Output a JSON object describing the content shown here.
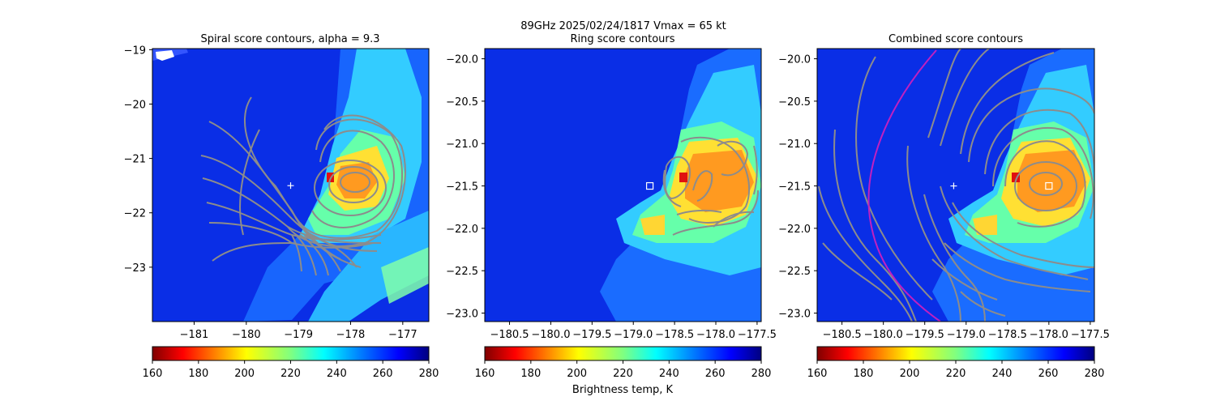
{
  "figure": {
    "suptitle_line1": "89GHz  2025/02/24/1817    Vmax = 65 kt",
    "colorbar_label": "Brightness temp, K"
  },
  "colormap": [
    "#800000",
    "#ff0000",
    "#ff8000",
    "#ffff00",
    "#80ff80",
    "#00ffff",
    "#0080ff",
    "#0000ff",
    "#000080"
  ],
  "chart_data": [
    {
      "type": "heatmap",
      "title": "Spiral score contours, alpha =  9.3",
      "xlim": [
        -181.8,
        -176.5
      ],
      "ylim": [
        -24.0,
        -18.98
      ],
      "xticks": [
        -181,
        -180,
        -179,
        -178,
        -177
      ],
      "xtick_labels": [
        "−181",
        "−180",
        "−179",
        "−178",
        "−177"
      ],
      "yticks": [
        -23,
        -22,
        -21,
        -20,
        -19
      ],
      "ytick_labels": [
        "−23",
        "−22",
        "−21",
        "−20",
        "−19"
      ],
      "colorbar": {
        "range": [
          160,
          280
        ],
        "ticks": [
          "160",
          "180",
          "200",
          "220",
          "240",
          "260",
          "280"
        ]
      },
      "markers": [
        {
          "type": "plus",
          "x": -179.15,
          "y": -21.5
        }
      ],
      "contour_center": [
        -178.0,
        -21.45
      ]
    },
    {
      "type": "heatmap",
      "title": "Ring score contours",
      "xlim": [
        -180.8,
        -177.45
      ],
      "ylim": [
        -23.1,
        -19.88
      ],
      "xticks": [
        -180.5,
        -180.0,
        -179.5,
        -179.0,
        -178.5,
        -178.0,
        -177.5
      ],
      "xtick_labels": [
        "−180.5",
        "−180.0",
        "−179.5",
        "−179.0",
        "−178.5",
        "−178.0",
        "−177.5"
      ],
      "yticks": [
        -23.0,
        -22.5,
        -22.0,
        -21.5,
        -21.0,
        -20.5,
        -20.0
      ],
      "ytick_labels": [
        "−23.0",
        "−22.5",
        "−22.0",
        "−21.5",
        "−21.0",
        "−20.5",
        "−20.0"
      ],
      "colorbar": {
        "range": [
          160,
          280
        ],
        "ticks": [
          "160",
          "180",
          "200",
          "220",
          "240",
          "260",
          "280"
        ]
      },
      "markers": [
        {
          "type": "square",
          "x": -178.8,
          "y": -21.5
        }
      ]
    },
    {
      "type": "heatmap",
      "title": "Combined score contours",
      "xlim": [
        -180.8,
        -177.45
      ],
      "ylim": [
        -23.1,
        -19.88
      ],
      "xticks": [
        -180.5,
        -180.0,
        -179.5,
        -179.0,
        -178.5,
        -178.0,
        -177.5
      ],
      "xtick_labels": [
        "−180.5",
        "−180.0",
        "−179.5",
        "−179.0",
        "−178.5",
        "−178.0",
        "−177.5"
      ],
      "yticks": [
        -23.0,
        -22.5,
        -22.0,
        -21.5,
        -21.0,
        -20.5,
        -20.0
      ],
      "ytick_labels": [
        "−23.0",
        "−22.5",
        "−22.0",
        "−21.5",
        "−21.0",
        "−20.5",
        "−20.0"
      ],
      "colorbar": {
        "range": [
          160,
          280
        ],
        "ticks": [
          "160",
          "180",
          "200",
          "220",
          "240",
          "260",
          "280"
        ]
      },
      "markers": [
        {
          "type": "plus",
          "x": -179.15,
          "y": -21.5
        },
        {
          "type": "square",
          "x": -178.0,
          "y": -21.5
        }
      ],
      "contour_center": [
        -178.0,
        -21.5
      ]
    }
  ]
}
